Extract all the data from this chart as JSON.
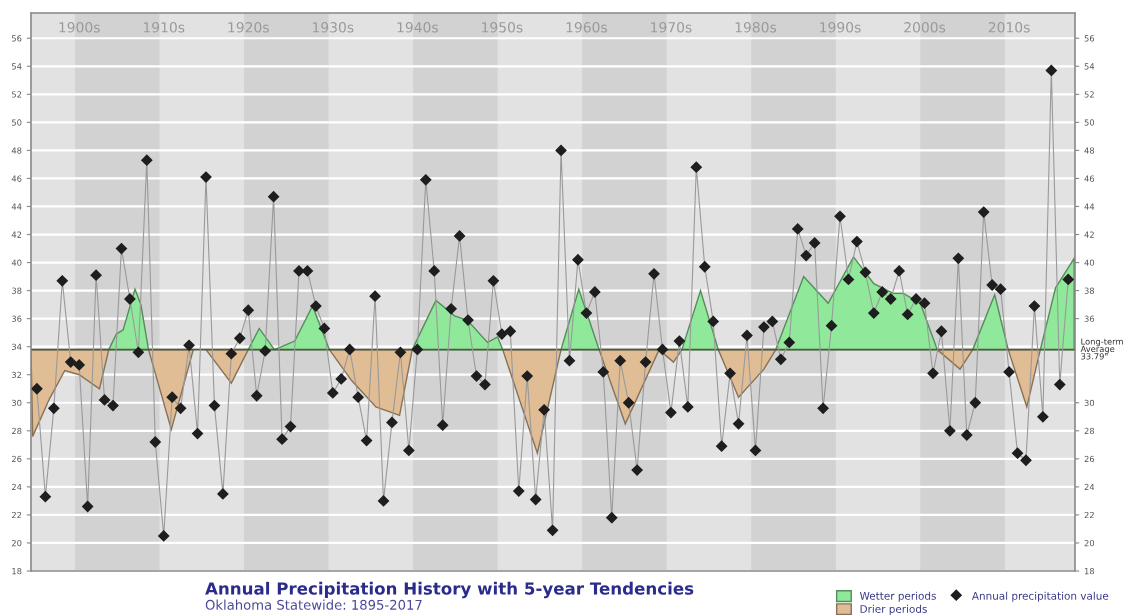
{
  "chart_data": {
    "type": "line",
    "title": "Annual Precipitation History with 5-year Tendencies",
    "subtitle": "Oklahoma Statewide: 1895-2017",
    "x": [
      1895,
      1896,
      1897,
      1898,
      1899,
      1900,
      1901,
      1902,
      1903,
      1904,
      1905,
      1906,
      1907,
      1908,
      1909,
      1910,
      1911,
      1912,
      1913,
      1914,
      1915,
      1916,
      1917,
      1918,
      1919,
      1920,
      1921,
      1922,
      1923,
      1924,
      1925,
      1926,
      1927,
      1928,
      1929,
      1930,
      1931,
      1932,
      1933,
      1934,
      1935,
      1936,
      1937,
      1938,
      1939,
      1940,
      1941,
      1942,
      1943,
      1944,
      1945,
      1946,
      1947,
      1948,
      1949,
      1950,
      1951,
      1952,
      1953,
      1954,
      1955,
      1956,
      1957,
      1958,
      1959,
      1960,
      1961,
      1962,
      1963,
      1964,
      1965,
      1966,
      1967,
      1968,
      1969,
      1970,
      1971,
      1972,
      1973,
      1974,
      1975,
      1976,
      1977,
      1978,
      1979,
      1980,
      1981,
      1982,
      1983,
      1984,
      1985,
      1986,
      1987,
      1988,
      1989,
      1990,
      1991,
      1992,
      1993,
      1994,
      1995,
      1996,
      1997,
      1998,
      1999,
      2000,
      2001,
      2002,
      2003,
      2004,
      2005,
      2006,
      2007,
      2008,
      2009,
      2010,
      2011,
      2012,
      2013,
      2014,
      2015,
      2016,
      2017
    ],
    "series": [
      {
        "name": "Wetter periods",
        "type": "area",
        "marker": "none",
        "color": "#90e89a",
        "x": [
          1903.5,
          1904.4,
          1905.2,
          1906.6,
          1907.3,
          1908.2,
          1914,
          1920.0,
          1921.3,
          1923.1,
          1925.5,
          1927.6,
          1929.6,
          1934,
          1939.4,
          1942.2,
          1944.4,
          1945.9,
          1948.3,
          1949.5,
          1950.1,
          1953,
          1957.0,
          1959.1,
          1961.5,
          1966,
          1971.3,
          1973.5,
          1975.6,
          1979,
          1982.4,
          1985.7,
          1988.6,
          1991.6,
          1994.0,
          1996.3,
          1997.5,
          1999.5,
          2001.5,
          2003,
          2005.7,
          2008.3,
          2009.9,
          2011,
          2013.7,
          2015.5,
          2017.7
        ],
        "values": [
          33.79,
          34.9,
          35.2,
          38.1,
          37.0,
          33.79,
          null,
          33.79,
          35.3,
          33.79,
          34.4,
          36.9,
          33.79,
          null,
          33.79,
          37.3,
          36.2,
          35.9,
          34.3,
          34.7,
          33.79,
          null,
          33.79,
          38.1,
          33.79,
          null,
          33.79,
          38.0,
          33.79,
          null,
          33.79,
          39.0,
          37.1,
          40.4,
          38.5,
          37.8,
          37.8,
          37.1,
          33.79,
          null,
          33.79,
          37.7,
          33.79,
          null,
          33.79,
          38.2,
          40.3
        ]
      },
      {
        "name": "Drier periods",
        "type": "area",
        "marker": "none",
        "color": "#e0bd94",
        "x": [
          1894.3,
          1894.5,
          1896.5,
          1898.3,
          1900.0,
          1902.4,
          1903.5,
          1906,
          1908.2,
          1910.9,
          1913.5,
          1914.5,
          1915.0,
          1918.0,
          1920.0,
          1925,
          1929.6,
          1932.2,
          1935.1,
          1937.9,
          1939.4,
          1945,
          1950.1,
          1954.2,
          1957.0,
          1959,
          1961.5,
          1964.6,
          1968.6,
          1970.3,
          1971.3,
          1973,
          1975.6,
          1978.0,
          1981.0,
          1982.4,
          1992,
          2001.5,
          2004.2,
          2005.7,
          2008,
          2009.9,
          2012.1,
          2013.7
        ],
        "values": [
          33.79,
          27.6,
          30.3,
          32.3,
          32.0,
          31.0,
          33.79,
          null,
          33.79,
          28.1,
          33.79,
          null,
          33.79,
          31.4,
          33.79,
          null,
          33.79,
          31.6,
          29.7,
          29.1,
          33.79,
          null,
          33.79,
          26.4,
          33.79,
          null,
          33.79,
          28.5,
          33.79,
          32.9,
          33.79,
          null,
          33.79,
          30.4,
          32.4,
          33.79,
          null,
          33.79,
          32.4,
          33.79,
          null,
          33.79,
          29.7,
          33.79
        ]
      },
      {
        "name": "Annual precipitation value",
        "color": "#1e1e1e",
        "values": [
          31.0,
          23.3,
          29.6,
          38.7,
          32.9,
          32.7,
          22.6,
          39.1,
          30.2,
          29.8,
          41.0,
          37.4,
          33.6,
          47.3,
          27.2,
          20.5,
          30.4,
          29.6,
          34.1,
          27.8,
          46.1,
          29.8,
          23.5,
          33.5,
          34.6,
          36.6,
          30.5,
          33.7,
          44.7,
          27.4,
          28.3,
          39.4,
          39.4,
          36.9,
          35.3,
          30.7,
          31.7,
          33.8,
          30.4,
          27.3,
          37.6,
          23.0,
          28.6,
          33.6,
          26.6,
          33.8,
          45.9,
          39.4,
          28.4,
          36.7,
          41.9,
          35.9,
          31.9,
          31.3,
          38.7,
          34.9,
          35.1,
          23.7,
          31.9,
          23.1,
          29.5,
          20.9,
          48.0,
          33.0,
          40.2,
          36.4,
          37.9,
          32.2,
          21.8,
          33.0,
          30.0,
          25.2,
          32.9,
          39.2,
          33.8,
          29.3,
          34.4,
          29.7,
          46.8,
          39.7,
          35.8,
          26.9,
          32.1,
          28.5,
          34.8,
          26.6,
          35.4,
          35.8,
          33.1,
          34.3,
          42.4,
          40.5,
          41.4,
          29.6,
          35.5,
          43.3,
          38.8,
          41.5,
          39.3,
          36.4,
          37.9,
          37.4,
          39.4,
          36.3,
          37.4,
          37.1,
          32.1,
          35.1,
          28.0,
          40.3,
          27.7,
          30.0,
          43.6,
          38.4,
          38.1,
          32.2,
          26.4,
          25.9,
          36.9,
          29.0,
          53.7,
          31.3,
          38.8
        ]
      }
    ],
    "marker": "diamond",
    "xlim": [
      1894.3,
      2017.8
    ],
    "ylim": [
      18,
      57.8
    ],
    "yticks": [
      18,
      20,
      22,
      24,
      26,
      28,
      30,
      32,
      34,
      36,
      38,
      40,
      42,
      44,
      46,
      48,
      50,
      52,
      54,
      56
    ],
    "y2lim": [
      18,
      57.8
    ],
    "y2ticks": [
      18,
      20,
      22,
      24,
      26,
      28,
      30,
      36,
      38,
      40,
      42,
      44,
      46,
      48,
      50,
      52,
      54,
      56
    ],
    "xticks": [
      {
        "value": 1900,
        "label": "1900s"
      },
      {
        "value": 1910,
        "label": "1910s"
      },
      {
        "value": 1920,
        "label": "1920s"
      },
      {
        "value": 1930,
        "label": "1930s"
      },
      {
        "value": 1940,
        "label": "1940s"
      },
      {
        "value": 1950,
        "label": "1950s"
      },
      {
        "value": 1960,
        "label": "1960s"
      },
      {
        "value": 1970,
        "label": "1970s"
      },
      {
        "value": 1980,
        "label": "1980s"
      },
      {
        "value": 1990,
        "label": "1990s"
      },
      {
        "value": 2000,
        "label": "2000s"
      },
      {
        "value": 2010,
        "label": "2010s"
      }
    ],
    "ref_lines": [
      {
        "axis": "y",
        "value": 33.79,
        "label": "Long-term\nAverage\n33.79\"",
        "color": "#4d5a40"
      }
    ],
    "bands": [
      {
        "axis": "x",
        "from": 1899.5,
        "to": 1909.5,
        "color": "#d2d2d2"
      },
      {
        "axis": "x",
        "from": 1919.5,
        "to": 1929.5,
        "color": "#d2d2d2"
      },
      {
        "axis": "x",
        "from": 1939.5,
        "to": 1949.5,
        "color": "#d2d2d2"
      },
      {
        "axis": "x",
        "from": 1959.5,
        "to": 1969.5,
        "color": "#d2d2d2"
      },
      {
        "axis": "x",
        "from": 1979.5,
        "to": 1989.5,
        "color": "#d2d2d2"
      },
      {
        "axis": "x",
        "from": 1999.5,
        "to": 2009.5,
        "color": "#d2d2d2"
      }
    ],
    "grid": "y",
    "legend": "bottom right"
  }
}
